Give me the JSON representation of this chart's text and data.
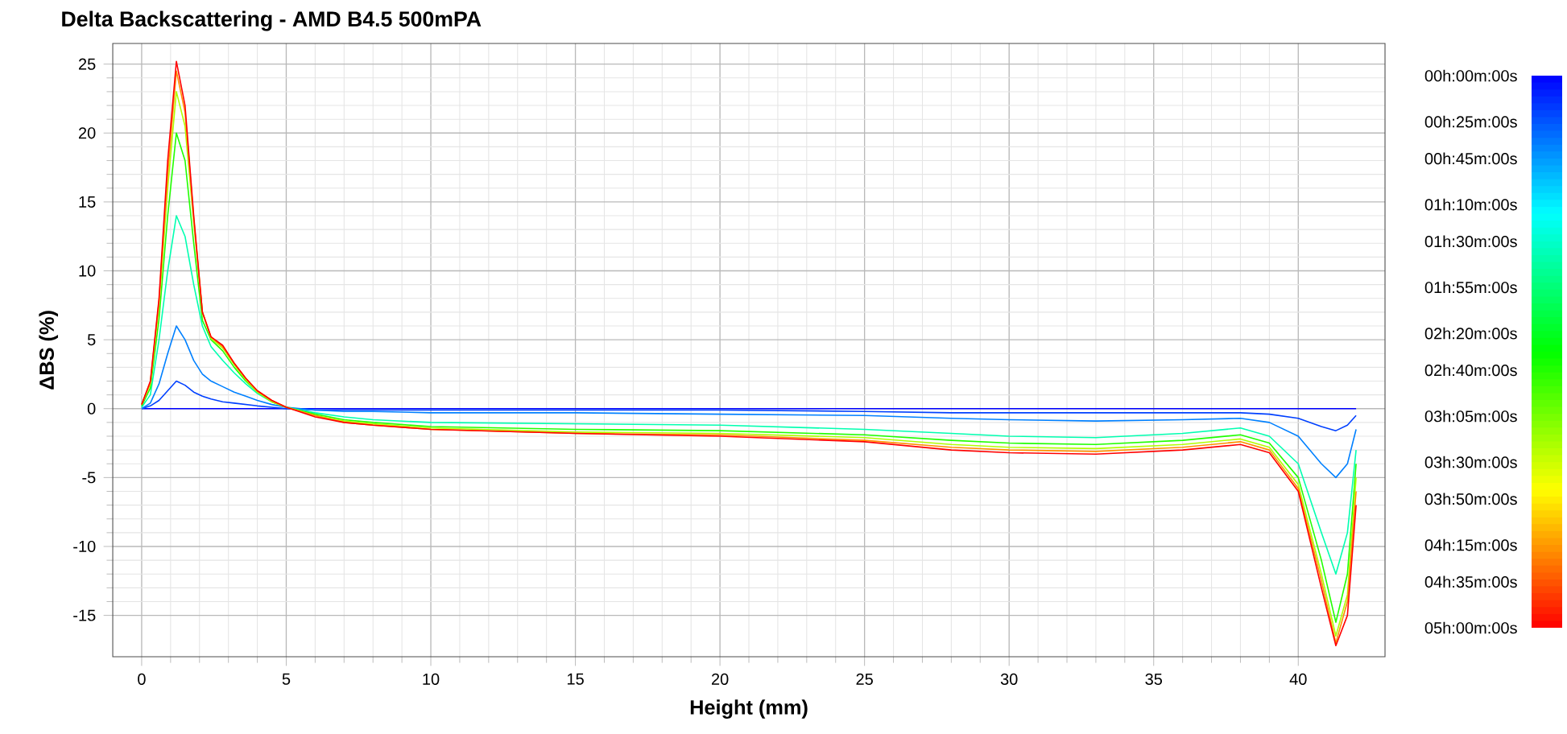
{
  "chart_data": {
    "type": "line",
    "title": "Delta Backscattering - AMD B4.5 500mPA",
    "xlabel": "Height (mm)",
    "ylabel": "ΔBS (%)",
    "x": [
      0,
      0.3,
      0.6,
      0.9,
      1.2,
      1.5,
      1.8,
      2.1,
      2.4,
      2.8,
      3.2,
      3.6,
      4,
      4.5,
      5,
      6,
      7,
      8,
      10,
      15,
      20,
      25,
      28,
      30,
      33,
      36,
      38,
      39,
      40,
      40.8,
      41.3,
      41.7,
      42
    ],
    "series": [
      {
        "color": "#0000ff",
        "values": [
          0,
          0,
          0,
          0,
          0,
          0,
          0,
          0,
          0,
          0,
          0,
          0,
          0,
          0,
          0,
          0,
          0,
          0,
          0,
          0,
          0,
          0,
          0,
          0,
          0,
          0,
          0,
          0,
          0,
          0,
          0,
          0,
          0
        ]
      },
      {
        "color": "#0040ff",
        "values": [
          0,
          0.2,
          0.6,
          1.3,
          2,
          1.7,
          1.2,
          0.9,
          0.7,
          0.5,
          0.4,
          0.3,
          0.2,
          0.1,
          0,
          -0.1,
          -0.1,
          -0.1,
          -0.1,
          -0.1,
          -0.1,
          -0.2,
          -0.3,
          -0.3,
          -0.3,
          -0.3,
          -0.3,
          -0.4,
          -0.7,
          -1.3,
          -1.6,
          -1.2,
          -0.5
        ]
      },
      {
        "color": "#0080ff",
        "values": [
          0,
          0.4,
          1.8,
          4,
          6,
          5,
          3.5,
          2.5,
          2,
          1.6,
          1.2,
          0.9,
          0.6,
          0.3,
          0.1,
          -0.1,
          -0.2,
          -0.2,
          -0.3,
          -0.3,
          -0.4,
          -0.5,
          -0.7,
          -0.8,
          -0.9,
          -0.8,
          -0.7,
          -1,
          -2,
          -4,
          -5,
          -4,
          -1.5
        ]
      },
      {
        "color": "#00ffb0",
        "values": [
          0.1,
          1,
          5,
          10,
          14,
          12.5,
          9,
          6,
          4.5,
          3.5,
          2.6,
          1.8,
          1.1,
          0.5,
          0.1,
          -0.3,
          -0.6,
          -0.8,
          -1,
          -1.1,
          -1.2,
          -1.5,
          -1.8,
          -2,
          -2.1,
          -1.8,
          -1.4,
          -2,
          -4,
          -9,
          -12,
          -9,
          -3
        ]
      },
      {
        "color": "#20ff00",
        "values": [
          0.2,
          1.5,
          6.5,
          14,
          20,
          18,
          12,
          6.4,
          5,
          4.2,
          3,
          2,
          1.2,
          0.5,
          0.1,
          -0.4,
          -0.8,
          -1,
          -1.3,
          -1.5,
          -1.6,
          -1.9,
          -2.3,
          -2.5,
          -2.6,
          -2.3,
          -1.9,
          -2.5,
          -5,
          -11,
          -15.5,
          -12,
          -4
        ]
      },
      {
        "color": "#b0ff00",
        "values": [
          0.3,
          1.8,
          7.5,
          16,
          23,
          20.5,
          13.5,
          7,
          5.1,
          4.4,
          3.2,
          2.1,
          1.2,
          0.5,
          0.1,
          -0.5,
          -0.9,
          -1.1,
          -1.4,
          -1.7,
          -1.8,
          -2.1,
          -2.6,
          -2.8,
          -2.9,
          -2.6,
          -2.2,
          -2.8,
          -5.5,
          -12,
          -16.5,
          -13.5,
          -5
        ]
      },
      {
        "color": "#ff9000",
        "values": [
          0.3,
          1.9,
          7.8,
          17,
          24.5,
          21.5,
          13.8,
          7,
          5.2,
          4.5,
          3.3,
          2.2,
          1.3,
          0.6,
          0.1,
          -0.5,
          -1,
          -1.2,
          -1.5,
          -1.8,
          -1.9,
          -2.3,
          -2.8,
          -3,
          -3.1,
          -2.8,
          -2.4,
          -3,
          -5.8,
          -12.5,
          -17,
          -14,
          -6
        ]
      },
      {
        "color": "#ff0000",
        "values": [
          0.3,
          2,
          8,
          18,
          25.2,
          22,
          14,
          7,
          5.2,
          4.6,
          3.3,
          2.2,
          1.3,
          0.6,
          0.1,
          -0.6,
          -1,
          -1.2,
          -1.5,
          -1.8,
          -2,
          -2.4,
          -3,
          -3.2,
          -3.3,
          -3,
          -2.6,
          -3.2,
          -6,
          -13,
          -17.2,
          -15,
          -7
        ]
      }
    ],
    "xlim": [
      -1,
      43
    ],
    "ylim": [
      -18,
      26.5
    ],
    "xticks": [
      0,
      5,
      10,
      15,
      20,
      25,
      30,
      35,
      40
    ],
    "yticks": [
      -15,
      -10,
      -5,
      0,
      5,
      10,
      15,
      20,
      25
    ],
    "grid": true,
    "marker": "none",
    "line_style": "solid",
    "clim": [
      0,
      300
    ],
    "cticks": [
      {
        "value": 0,
        "label": "00h:00m:00s"
      },
      {
        "value": 25,
        "label": "00h:25m:00s"
      },
      {
        "value": 45,
        "label": "00h:45m:00s"
      },
      {
        "value": 70,
        "label": "01h:10m:00s"
      },
      {
        "value": 90,
        "label": "01h:30m:00s"
      },
      {
        "value": 115,
        "label": "01h:55m:00s"
      },
      {
        "value": 140,
        "label": "02h:20m:00s"
      },
      {
        "value": 160,
        "label": "02h:40m:00s"
      },
      {
        "value": 185,
        "label": "03h:05m:00s"
      },
      {
        "value": 210,
        "label": "03h:30m:00s"
      },
      {
        "value": 230,
        "label": "03h:50m:00s"
      },
      {
        "value": 255,
        "label": "04h:15m:00s"
      },
      {
        "value": 275,
        "label": "04h:35m:00s"
      },
      {
        "value": 300,
        "label": "05h:00m:00s"
      }
    ]
  }
}
